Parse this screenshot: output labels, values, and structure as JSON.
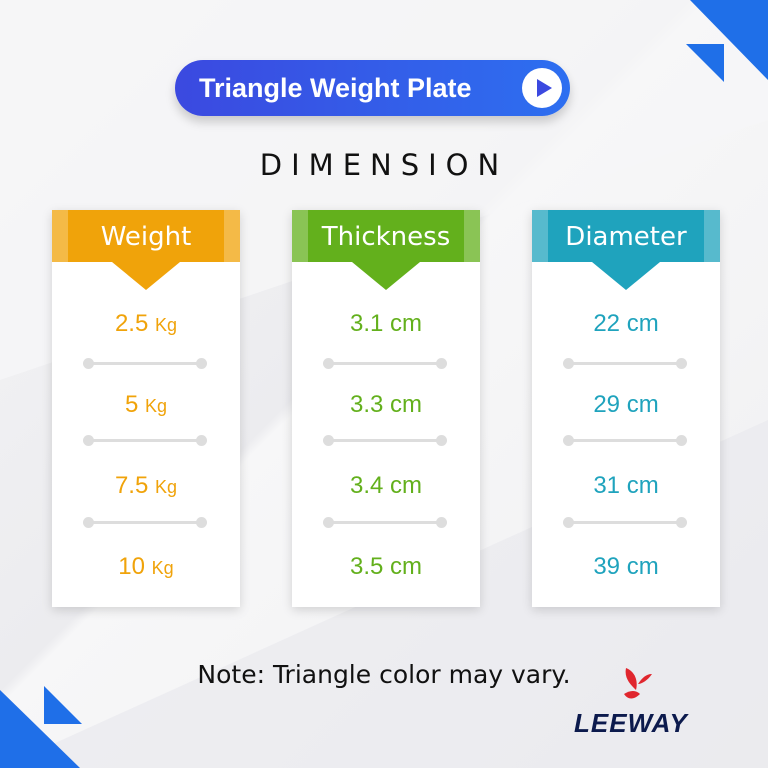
{
  "title": "Triangle Weight Plate",
  "heading": "DIMENSION",
  "columns": [
    {
      "header": "Weight",
      "color": "#f0a30a",
      "items": [
        {
          "value": "2.5",
          "unit": "Kg"
        },
        {
          "value": "5",
          "unit": "Kg"
        },
        {
          "value": "7.5",
          "unit": "Kg"
        },
        {
          "value": "10",
          "unit": "Kg"
        }
      ]
    },
    {
      "header": "Thickness",
      "color": "#63b01c",
      "items": [
        {
          "value": "3.1",
          "unit": "cm"
        },
        {
          "value": "3.3",
          "unit": "cm"
        },
        {
          "value": "3.4",
          "unit": "cm"
        },
        {
          "value": "3.5",
          "unit": "cm"
        }
      ]
    },
    {
      "header": "Diameter",
      "color": "#1fa3bd",
      "items": [
        {
          "value": "22",
          "unit": "cm"
        },
        {
          "value": "29",
          "unit": "cm"
        },
        {
          "value": "31",
          "unit": "cm"
        },
        {
          "value": "39",
          "unit": "cm"
        }
      ]
    }
  ],
  "note": "Note: Triangle color may vary.",
  "brand": "LEEWAY"
}
